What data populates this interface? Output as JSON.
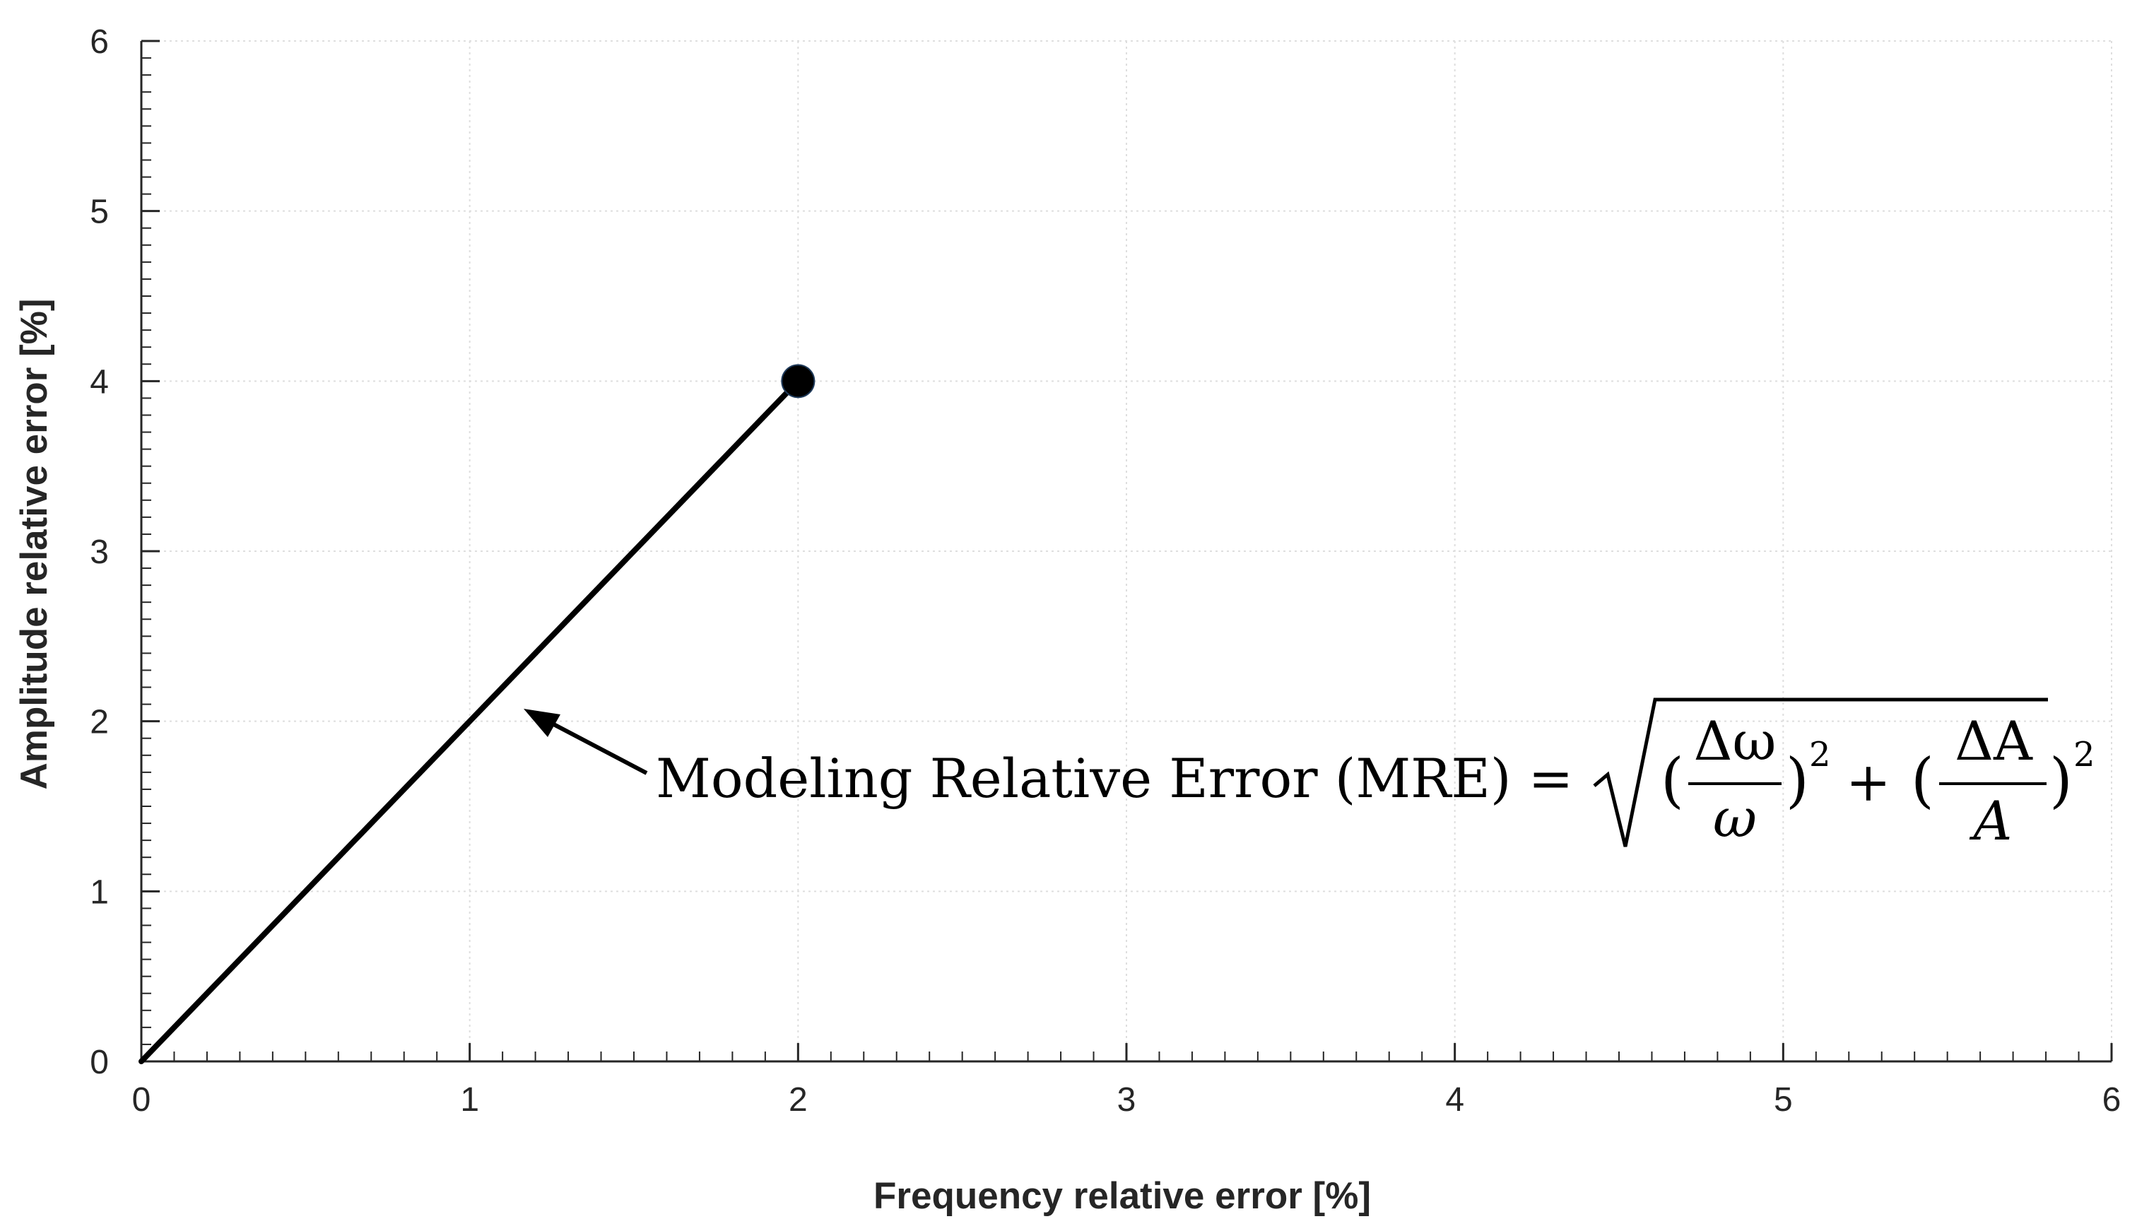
{
  "chart_data": {
    "type": "line",
    "xlabel": "Frequency relative error [%]",
    "ylabel": "Amplitude relative error [%]",
    "xlim": [
      0,
      6
    ],
    "ylim": [
      0,
      6
    ],
    "x_ticks": [
      "0",
      "1",
      "2",
      "3",
      "4",
      "5",
      "6"
    ],
    "y_ticks": [
      "0",
      "1",
      "2",
      "3",
      "4",
      "5",
      "6"
    ],
    "grid": true,
    "minor_ticks": true,
    "series": [
      {
        "x": [
          0,
          2
        ],
        "y": [
          0,
          4
        ],
        "color": "#000000",
        "end_marker": "filled-circle"
      }
    ],
    "annotation": {
      "text": "Modeling Relative Error (MRE) =",
      "arrow_target": [
        1.15,
        2.05
      ],
      "formula": {
        "left_paren": "(",
        "frac1_num": "Δω",
        "frac1_den": "ω",
        "right_paren": ")",
        "exponent": "2",
        "plus": "+",
        "frac2_num": "ΔA",
        "frac2_den": "A"
      }
    }
  }
}
